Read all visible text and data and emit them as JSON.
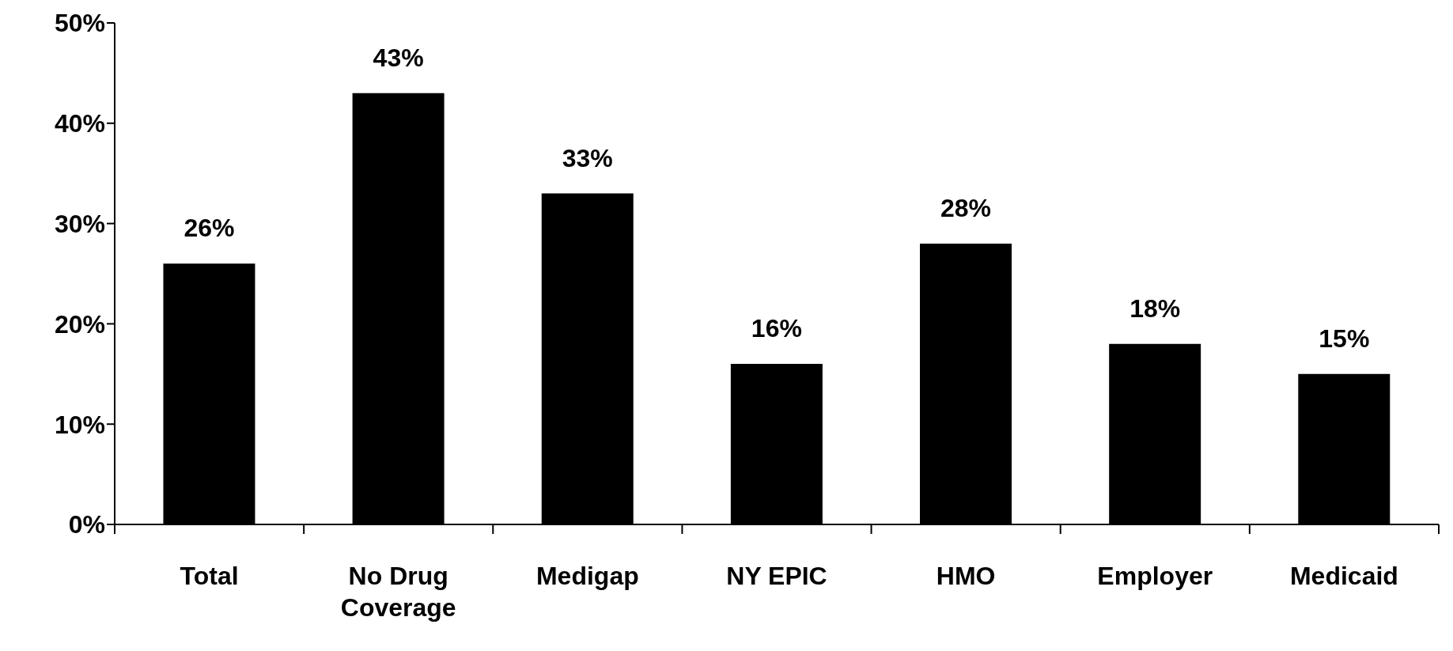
{
  "chart_data": {
    "type": "bar",
    "categories": [
      "Total",
      "No Drug Coverage",
      "Medigap",
      "NY EPIC",
      "HMO",
      "Employer",
      "Medicaid"
    ],
    "values": [
      26,
      43,
      33,
      16,
      28,
      18,
      15
    ],
    "color": "#000000",
    "value_labels": [
      "26%",
      "43%",
      "33%",
      "16%",
      "28%",
      "18%",
      "15%"
    ],
    "ylim": [
      0,
      50
    ],
    "yticks": [
      {
        "value": 0,
        "label": "0%"
      },
      {
        "value": 10,
        "label": "10%"
      },
      {
        "value": 20,
        "label": "20%"
      },
      {
        "value": 30,
        "label": "30%"
      },
      {
        "value": 40,
        "label": "40%"
      },
      {
        "value": 50,
        "label": "50%"
      }
    ],
    "grid": false,
    "legend": false
  }
}
